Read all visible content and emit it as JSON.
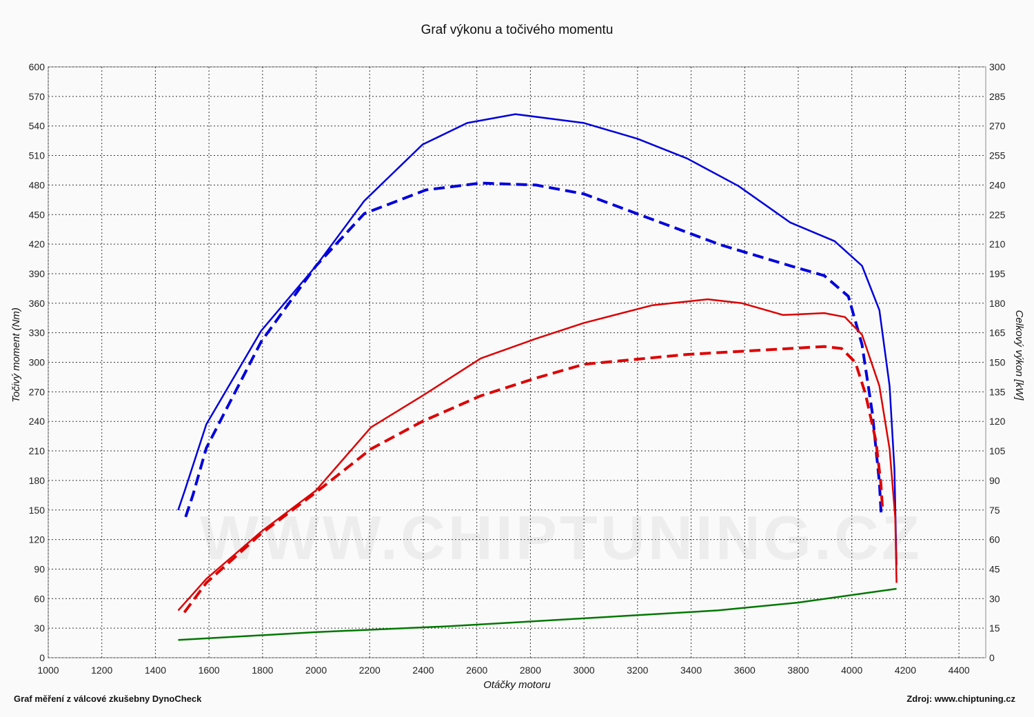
{
  "watermark": "WWW.CHIPTUNING.CZ",
  "footer": {
    "left": "Graf měření z válcové zkušebny DynoCheck",
    "right": "Zdroj: www.chiptuning.cz"
  },
  "chart_data": {
    "type": "line",
    "title": "Graf výkonu a točivého momentu",
    "xlabel": "Otáčky motoru",
    "ylabel": "Točivý moment (Nm)",
    "y2label": "Celkový výkon [kW]",
    "xlim": [
      1000,
      4500
    ],
    "ylim": [
      0,
      600
    ],
    "y2lim": [
      0,
      300
    ],
    "xticks": [
      1000,
      1200,
      1400,
      1600,
      1800,
      2000,
      2200,
      2400,
      2600,
      2800,
      3000,
      3200,
      3400,
      3600,
      3800,
      4000,
      4200,
      4400
    ],
    "yticks": [
      0,
      30,
      60,
      90,
      120,
      150,
      180,
      210,
      240,
      270,
      300,
      330,
      360,
      390,
      420,
      450,
      480,
      510,
      540,
      570,
      600
    ],
    "y2ticks": [
      0,
      15,
      30,
      45,
      60,
      75,
      90,
      105,
      120,
      135,
      150,
      165,
      180,
      195,
      210,
      225,
      240,
      255,
      270,
      285,
      300
    ],
    "grid": true,
    "series": [
      {
        "axis": "left",
        "color": "#0000dd",
        "dash": false,
        "points": [
          [
            1485,
            150
          ],
          [
            1510,
            170
          ],
          [
            1590,
            237
          ],
          [
            1795,
            332
          ],
          [
            2000,
            398
          ],
          [
            2180,
            464
          ],
          [
            2397,
            521
          ],
          [
            2564,
            543
          ],
          [
            2744,
            552
          ],
          [
            3000,
            543
          ],
          [
            3200,
            527
          ],
          [
            3385,
            507
          ],
          [
            3577,
            479
          ],
          [
            3770,
            442
          ],
          [
            3936,
            423
          ],
          [
            4038,
            398
          ],
          [
            4103,
            353
          ],
          [
            4141,
            276
          ],
          [
            4159,
            192
          ],
          [
            4167,
            94
          ]
        ]
      },
      {
        "axis": "left",
        "color": "#0000dd",
        "dash": true,
        "points": [
          [
            1513,
            143
          ],
          [
            1540,
            165
          ],
          [
            1590,
            213
          ],
          [
            1795,
            321
          ],
          [
            2000,
            398
          ],
          [
            2180,
            451
          ],
          [
            2410,
            475
          ],
          [
            2615,
            482
          ],
          [
            2821,
            480
          ],
          [
            3000,
            471
          ],
          [
            3256,
            445
          ],
          [
            3513,
            419
          ],
          [
            3770,
            398
          ],
          [
            3897,
            388
          ],
          [
            3987,
            367
          ],
          [
            4038,
            318
          ],
          [
            4077,
            248
          ],
          [
            4103,
            178
          ],
          [
            4110,
            143
          ]
        ]
      },
      {
        "axis": "right",
        "color": "#dd0000",
        "dash": false,
        "points": [
          [
            1485,
            24
          ],
          [
            1590,
            40
          ],
          [
            1795,
            64
          ],
          [
            2000,
            85
          ],
          [
            2205,
            117
          ],
          [
            2397,
            133
          ],
          [
            2615,
            152
          ],
          [
            2821,
            162
          ],
          [
            3000,
            170
          ],
          [
            3256,
            179
          ],
          [
            3462,
            182
          ],
          [
            3590,
            180
          ],
          [
            3744,
            174
          ],
          [
            3897,
            175
          ],
          [
            3974,
            173
          ],
          [
            4038,
            164
          ],
          [
            4103,
            138
          ],
          [
            4141,
            106
          ],
          [
            4162,
            71
          ],
          [
            4167,
            38
          ]
        ]
      },
      {
        "axis": "right",
        "color": "#dd0000",
        "dash": true,
        "points": [
          [
            1508,
            23
          ],
          [
            1590,
            38
          ],
          [
            1795,
            63
          ],
          [
            2000,
            84
          ],
          [
            2205,
            106
          ],
          [
            2397,
            120
          ],
          [
            2615,
            133
          ],
          [
            2821,
            142
          ],
          [
            3000,
            149
          ],
          [
            3385,
            154
          ],
          [
            3641,
            156
          ],
          [
            3897,
            158
          ],
          [
            3962,
            157
          ],
          [
            4013,
            150
          ],
          [
            4051,
            134
          ],
          [
            4090,
            110
          ],
          [
            4108,
            89
          ],
          [
            4115,
            75
          ]
        ]
      },
      {
        "axis": "right",
        "color": "#007700",
        "dash": false,
        "points": [
          [
            1485,
            9
          ],
          [
            2000,
            13
          ],
          [
            2500,
            16
          ],
          [
            3000,
            20
          ],
          [
            3500,
            24
          ],
          [
            3800,
            28
          ],
          [
            4167,
            35
          ]
        ]
      }
    ]
  }
}
